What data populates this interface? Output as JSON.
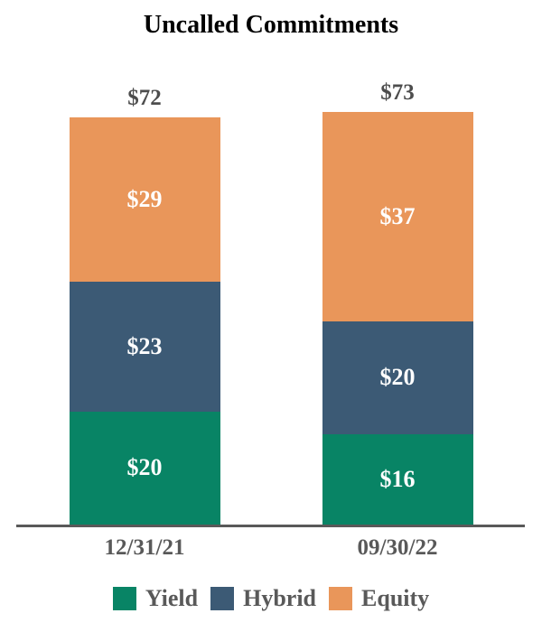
{
  "title": "Uncalled Commitments",
  "chart_data": {
    "type": "bar",
    "stacked": true,
    "title": "Uncalled Commitments",
    "categories": [
      "12/31/21",
      "09/30/22"
    ],
    "series": [
      {
        "name": "Yield",
        "color": "#088465",
        "values": [
          20,
          16
        ]
      },
      {
        "name": "Hybrid",
        "color": "#3C5A75",
        "values": [
          23,
          20
        ]
      },
      {
        "name": "Equity",
        "color": "#E9965A",
        "values": [
          29,
          37
        ]
      }
    ],
    "totals": [
      72,
      73
    ],
    "value_prefix": "$",
    "total_labels": [
      "$72",
      "$73"
    ],
    "segment_labels": [
      [
        "$20",
        "$23",
        "$29"
      ],
      [
        "$16",
        "$20",
        "$37"
      ]
    ],
    "legend_position": "bottom",
    "legend_entries": [
      "Yield",
      "Hybrid",
      "Equity"
    ],
    "grid": false,
    "y_axis_visible": false
  },
  "colors": {
    "total_label": "#4d4d4d",
    "axis_line": "#595959",
    "segment_label": "#ffffff",
    "tick_label": "#595959",
    "legend_label": "#595959",
    "title": "#000000",
    "background": "#ffffff"
  }
}
